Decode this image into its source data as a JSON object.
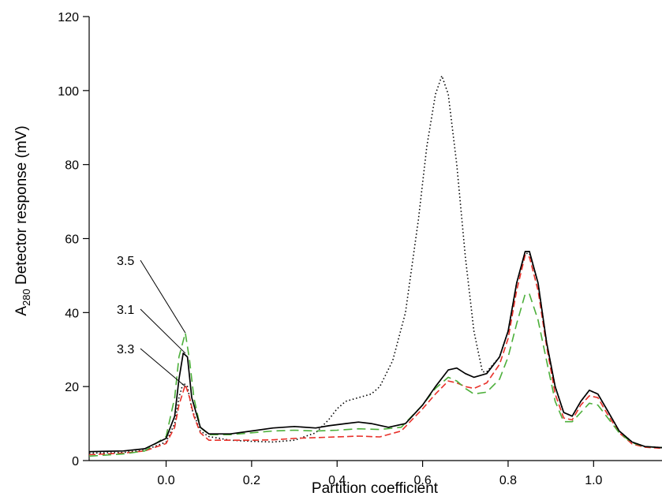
{
  "chart_data": {
    "type": "line",
    "xlabel": "Partition coefficient",
    "ylabel_main": "A",
    "ylabel_sub": "280",
    "ylabel_rest": " Detector response (mV)",
    "xlim": [
      -0.18,
      1.16
    ],
    "ylim": [
      0,
      120
    ],
    "xticks": [
      {
        "value": 0.0,
        "label": "0.0"
      },
      {
        "value": 0.2,
        "label": "0.2"
      },
      {
        "value": 0.4,
        "label": "0.4"
      },
      {
        "value": 0.6,
        "label": "0.6"
      },
      {
        "value": 0.8,
        "label": "0.8"
      },
      {
        "value": 1.0,
        "label": "1.0"
      }
    ],
    "yticks": [
      {
        "value": 0,
        "label": "0"
      },
      {
        "value": 20,
        "label": "20"
      },
      {
        "value": 40,
        "label": "40"
      },
      {
        "value": 60,
        "label": "60"
      },
      {
        "value": 80,
        "label": "80"
      },
      {
        "value": 100,
        "label": "100"
      },
      {
        "value": 120,
        "label": "120"
      }
    ],
    "grid": false,
    "series": [
      {
        "name": "3.1",
        "color": "#000000",
        "dash": "solid",
        "points": [
          [
            -0.18,
            2.4
          ],
          [
            -0.1,
            2.6
          ],
          [
            -0.05,
            3.2
          ],
          [
            0.0,
            6.0
          ],
          [
            0.02,
            12
          ],
          [
            0.03,
            22
          ],
          [
            0.04,
            29
          ],
          [
            0.05,
            28
          ],
          [
            0.06,
            17
          ],
          [
            0.08,
            9
          ],
          [
            0.1,
            7.2
          ],
          [
            0.15,
            7.2
          ],
          [
            0.2,
            8.0
          ],
          [
            0.25,
            8.8
          ],
          [
            0.3,
            9.2
          ],
          [
            0.35,
            8.8
          ],
          [
            0.38,
            9.4
          ],
          [
            0.42,
            10.0
          ],
          [
            0.45,
            10.4
          ],
          [
            0.48,
            10.0
          ],
          [
            0.52,
            9.0
          ],
          [
            0.56,
            10.0
          ],
          [
            0.6,
            15
          ],
          [
            0.63,
            20
          ],
          [
            0.66,
            24.5
          ],
          [
            0.68,
            25.0
          ],
          [
            0.7,
            23.5
          ],
          [
            0.72,
            22.5
          ],
          [
            0.75,
            23.5
          ],
          [
            0.78,
            28
          ],
          [
            0.8,
            35
          ],
          [
            0.82,
            48
          ],
          [
            0.84,
            56.5
          ],
          [
            0.85,
            56.5
          ],
          [
            0.87,
            48
          ],
          [
            0.89,
            32
          ],
          [
            0.91,
            20
          ],
          [
            0.93,
            13
          ],
          [
            0.95,
            12
          ],
          [
            0.97,
            16
          ],
          [
            0.99,
            19
          ],
          [
            1.01,
            18
          ],
          [
            1.03,
            14
          ],
          [
            1.06,
            8
          ],
          [
            1.09,
            5
          ],
          [
            1.12,
            3.8
          ],
          [
            1.16,
            3.5
          ]
        ]
      },
      {
        "name": "3.3",
        "color": "#e8312a",
        "dash": "8,4",
        "points": [
          [
            -0.18,
            1.6
          ],
          [
            -0.1,
            2.0
          ],
          [
            -0.05,
            2.6
          ],
          [
            0.0,
            4.6
          ],
          [
            0.02,
            9
          ],
          [
            0.03,
            15
          ],
          [
            0.045,
            20.5
          ],
          [
            0.055,
            17
          ],
          [
            0.065,
            12
          ],
          [
            0.08,
            7.5
          ],
          [
            0.1,
            5.5
          ],
          [
            0.15,
            5.5
          ],
          [
            0.2,
            5.5
          ],
          [
            0.25,
            5.6
          ],
          [
            0.3,
            6.0
          ],
          [
            0.35,
            6.2
          ],
          [
            0.4,
            6.4
          ],
          [
            0.45,
            6.6
          ],
          [
            0.5,
            6.4
          ],
          [
            0.55,
            8.0
          ],
          [
            0.6,
            14
          ],
          [
            0.63,
            18
          ],
          [
            0.66,
            21.5
          ],
          [
            0.68,
            21
          ],
          [
            0.7,
            20
          ],
          [
            0.72,
            19.5
          ],
          [
            0.75,
            21
          ],
          [
            0.78,
            26
          ],
          [
            0.8,
            33
          ],
          [
            0.82,
            46
          ],
          [
            0.84,
            55.5
          ],
          [
            0.85,
            55
          ],
          [
            0.87,
            46
          ],
          [
            0.89,
            31
          ],
          [
            0.91,
            18
          ],
          [
            0.93,
            11.5
          ],
          [
            0.95,
            11
          ],
          [
            0.97,
            15
          ],
          [
            0.99,
            17.5
          ],
          [
            1.01,
            17
          ],
          [
            1.03,
            13
          ],
          [
            1.06,
            7.5
          ],
          [
            1.09,
            4.5
          ],
          [
            1.12,
            3.6
          ],
          [
            1.16,
            3.3
          ]
        ]
      },
      {
        "name": "3.5",
        "color": "#4caf3a",
        "dash": "11,6",
        "points": [
          [
            -0.18,
            1.2
          ],
          [
            -0.1,
            1.8
          ],
          [
            -0.05,
            2.6
          ],
          [
            0.0,
            6.5
          ],
          [
            0.02,
            17
          ],
          [
            0.03,
            28
          ],
          [
            0.045,
            34.5
          ],
          [
            0.055,
            27
          ],
          [
            0.065,
            17
          ],
          [
            0.08,
            9
          ],
          [
            0.1,
            7.0
          ],
          [
            0.15,
            7.0
          ],
          [
            0.2,
            7.5
          ],
          [
            0.25,
            8.0
          ],
          [
            0.3,
            8.2
          ],
          [
            0.35,
            8.0
          ],
          [
            0.4,
            8.2
          ],
          [
            0.45,
            8.6
          ],
          [
            0.5,
            8.4
          ],
          [
            0.55,
            9.0
          ],
          [
            0.6,
            15
          ],
          [
            0.63,
            19.5
          ],
          [
            0.66,
            22.5
          ],
          [
            0.68,
            21.5
          ],
          [
            0.7,
            19.5
          ],
          [
            0.72,
            18
          ],
          [
            0.75,
            18.5
          ],
          [
            0.78,
            22
          ],
          [
            0.8,
            28
          ],
          [
            0.82,
            37
          ],
          [
            0.84,
            45
          ],
          [
            0.85,
            45
          ],
          [
            0.87,
            38
          ],
          [
            0.89,
            27
          ],
          [
            0.91,
            16
          ],
          [
            0.93,
            10.5
          ],
          [
            0.95,
            10.5
          ],
          [
            0.97,
            13
          ],
          [
            0.99,
            15.5
          ],
          [
            1.01,
            15
          ],
          [
            1.03,
            12
          ],
          [
            1.06,
            7.5
          ],
          [
            1.09,
            4.8
          ],
          [
            1.12,
            3.8
          ],
          [
            1.16,
            3.5
          ]
        ]
      },
      {
        "name": "",
        "color": "#000000",
        "dash": "1.5,3",
        "points": [
          [
            -0.18,
            2.0
          ],
          [
            -0.1,
            2.2
          ],
          [
            -0.05,
            2.8
          ],
          [
            0.0,
            5.0
          ],
          [
            0.02,
            10
          ],
          [
            0.03,
            17
          ],
          [
            0.04,
            21
          ],
          [
            0.05,
            20
          ],
          [
            0.06,
            14
          ],
          [
            0.08,
            8
          ],
          [
            0.1,
            6.5
          ],
          [
            0.15,
            5.5
          ],
          [
            0.2,
            5.2
          ],
          [
            0.25,
            5.0
          ],
          [
            0.3,
            5.5
          ],
          [
            0.35,
            7.5
          ],
          [
            0.38,
            11
          ],
          [
            0.4,
            14
          ],
          [
            0.42,
            16
          ],
          [
            0.45,
            17
          ],
          [
            0.48,
            18
          ],
          [
            0.5,
            20
          ],
          [
            0.53,
            27
          ],
          [
            0.56,
            40
          ],
          [
            0.59,
            65
          ],
          [
            0.61,
            85
          ],
          [
            0.63,
            99
          ],
          [
            0.645,
            104
          ],
          [
            0.66,
            99
          ],
          [
            0.68,
            80
          ],
          [
            0.7,
            55
          ],
          [
            0.72,
            35
          ],
          [
            0.74,
            24
          ],
          [
            0.75,
            24
          ],
          [
            0.78,
            28
          ],
          [
            0.8,
            35
          ],
          [
            0.82,
            48
          ],
          [
            0.84,
            56
          ],
          [
            0.85,
            56
          ],
          [
            0.87,
            48
          ],
          [
            0.89,
            32
          ],
          [
            0.91,
            20
          ],
          [
            0.93,
            13
          ],
          [
            0.95,
            12
          ],
          [
            0.97,
            16
          ],
          [
            0.99,
            19
          ],
          [
            1.01,
            18
          ],
          [
            1.03,
            14
          ],
          [
            1.06,
            8
          ],
          [
            1.09,
            5
          ],
          [
            1.12,
            3.8
          ],
          [
            1.16,
            3.5
          ]
        ]
      }
    ],
    "annotations": [
      {
        "label": "3.5",
        "value_x": 0.045,
        "value_y": 34.5
      },
      {
        "label": "3.1",
        "value_x": 0.045,
        "value_y": 29
      },
      {
        "label": "3.3",
        "value_x": 0.045,
        "value_y": 20
      }
    ]
  }
}
